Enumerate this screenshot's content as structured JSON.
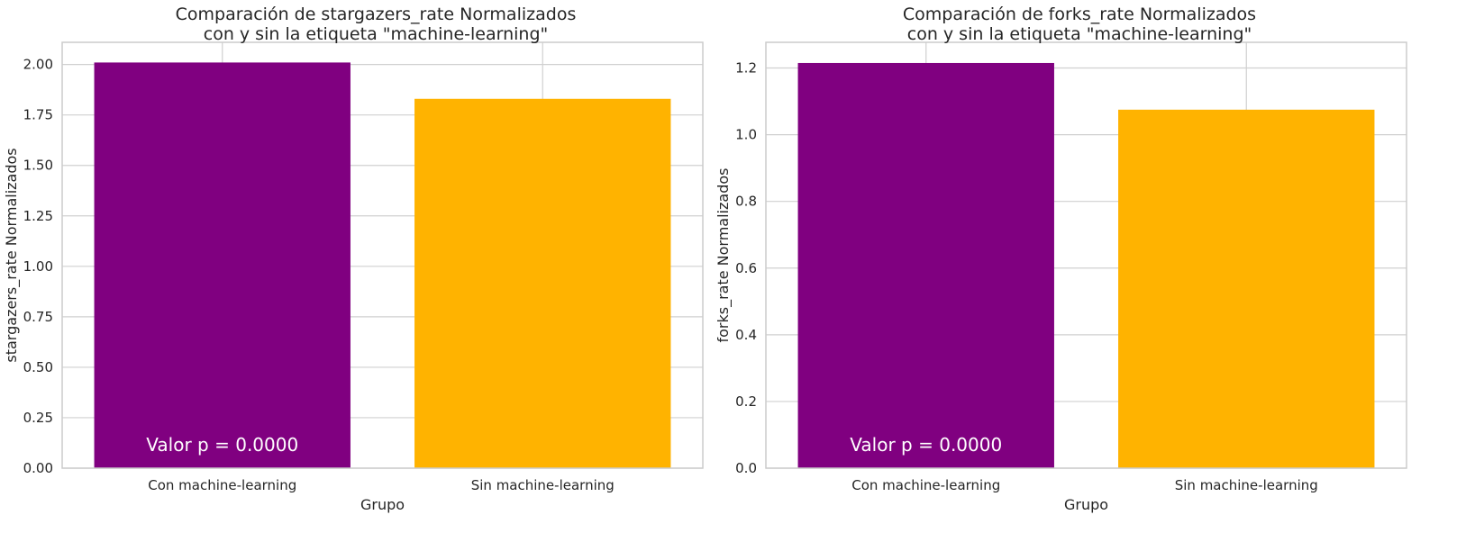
{
  "chart_data": [
    {
      "type": "bar",
      "title": [
        "Comparación de stargazers_rate Normalizados",
        "con y sin la etiqueta \"machine-learning\""
      ],
      "categories": [
        "Con machine-learning",
        "Sin machine-learning"
      ],
      "values": [
        2.01,
        1.83
      ],
      "colors": [
        "#800080",
        "#ffb300"
      ],
      "xlabel": "Grupo",
      "ylabel": "stargazers_rate Normalizados",
      "ylim": [
        0,
        2.11
      ],
      "yticks": [
        0.0,
        0.25,
        0.5,
        0.75,
        1.0,
        1.25,
        1.5,
        1.75,
        2.0
      ],
      "ytick_labels": [
        "0.00",
        "0.25",
        "0.50",
        "0.75",
        "1.00",
        "1.25",
        "1.50",
        "1.75",
        "2.00"
      ],
      "annotation": "Valor p = 0.0000",
      "grid": true
    },
    {
      "type": "bar",
      "title": [
        "Comparación de forks_rate Normalizados",
        "con y sin la etiqueta \"machine-learning\""
      ],
      "categories": [
        "Con machine-learning",
        "Sin machine-learning"
      ],
      "values": [
        1.215,
        1.075
      ],
      "colors": [
        "#800080",
        "#ffb300"
      ],
      "xlabel": "Grupo",
      "ylabel": "forks_rate Normalizados",
      "ylim": [
        0,
        1.277
      ],
      "yticks": [
        0.0,
        0.2,
        0.4,
        0.6,
        0.8,
        1.0,
        1.2
      ],
      "ytick_labels": [
        "0.0",
        "0.2",
        "0.4",
        "0.6",
        "0.8",
        "1.0",
        "1.2"
      ],
      "annotation": "Valor p = 0.0000",
      "grid": true
    }
  ]
}
